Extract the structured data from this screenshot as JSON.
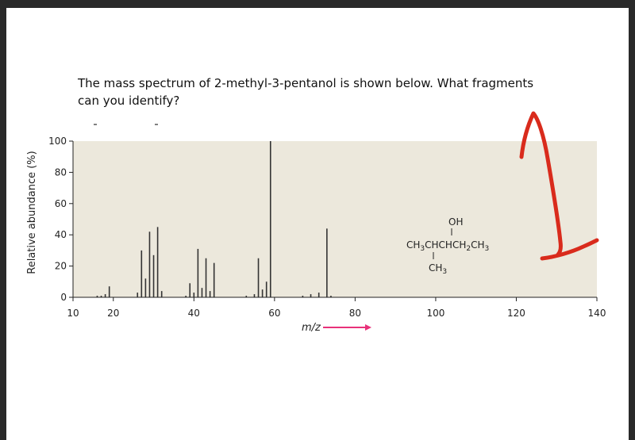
{
  "question": {
    "line1": "The mass spectrum of 2-methyl-3-pentanol is shown below. What fragments",
    "line2": "can you identify?"
  },
  "structure": {
    "oh": "OH",
    "chain": [
      "CH",
      "3",
      "CHCHCH",
      "2",
      "CH",
      "3"
    ],
    "branch": [
      "CH",
      "3"
    ]
  },
  "colors": {
    "plot_background": "#ece8dc",
    "bars": "#333333",
    "arrow": "#e8317a",
    "annotation": "#d92b1c"
  },
  "chart_data": {
    "type": "bar",
    "title": "",
    "xlabel": "m/z",
    "ylabel": "Relative abundance (%)",
    "xlim": [
      10,
      140
    ],
    "ylim": [
      0,
      100
    ],
    "xticks": [
      10,
      20,
      40,
      60,
      80,
      100,
      120,
      140
    ],
    "yticks": [
      0,
      20,
      40,
      60,
      80,
      100
    ],
    "x": [
      16,
      17,
      18,
      19,
      26,
      27,
      28,
      29,
      30,
      31,
      32,
      38,
      39,
      40,
      41,
      42,
      43,
      44,
      45,
      53,
      55,
      56,
      57,
      58,
      59,
      67,
      69,
      71,
      73,
      74
    ],
    "y": [
      1,
      1,
      2,
      7,
      3,
      30,
      12,
      42,
      27,
      45,
      4,
      1,
      9,
      3,
      31,
      6,
      25,
      4,
      22,
      1,
      2,
      25,
      5,
      10,
      100,
      1,
      2,
      3,
      44,
      1
    ]
  }
}
